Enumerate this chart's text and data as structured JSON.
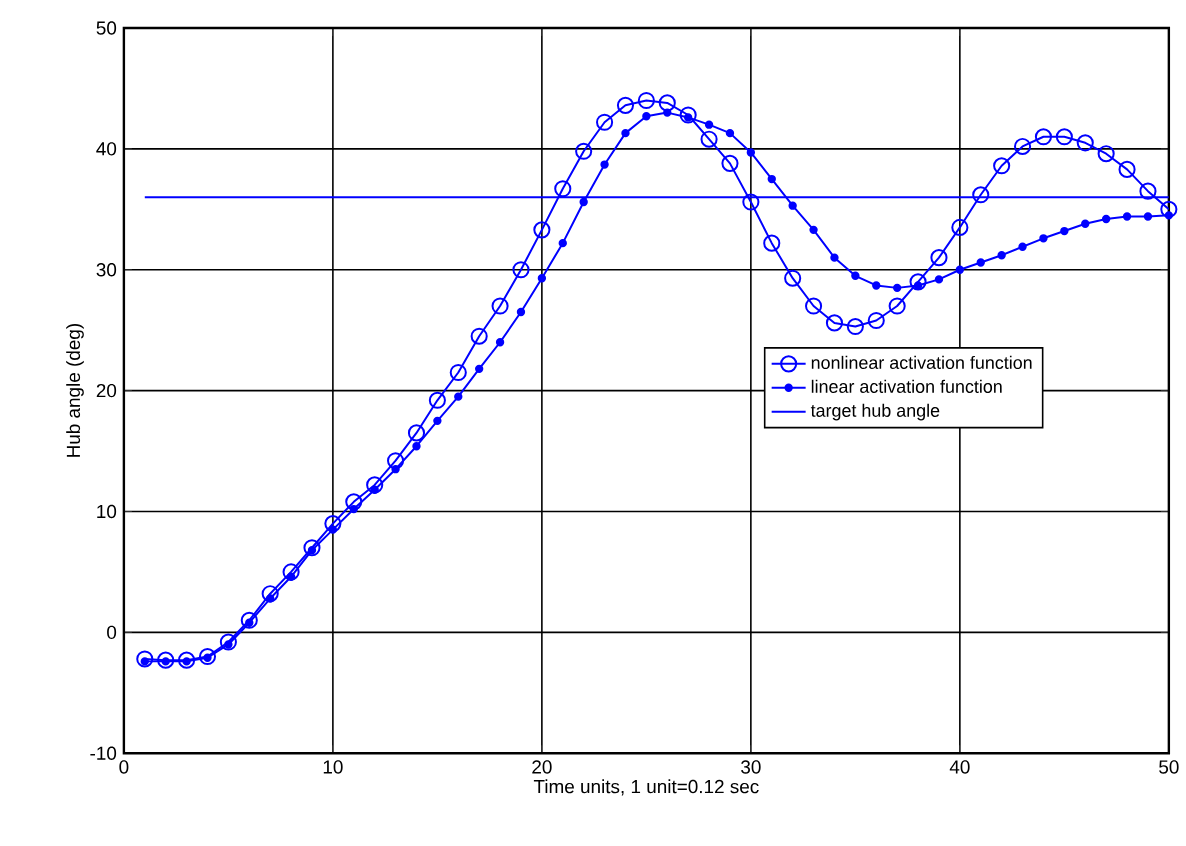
{
  "chart_data": {
    "type": "line",
    "xlabel": "Time units, 1 unit=0.12 sec",
    "ylabel": "Hub angle (deg)",
    "xlim": [
      0,
      50
    ],
    "ylim": [
      -10,
      50
    ],
    "xticks": [
      0,
      10,
      20,
      30,
      40,
      50
    ],
    "yticks": [
      -10,
      0,
      10,
      20,
      30,
      40,
      50
    ],
    "grid": true,
    "legend": "right",
    "x": [
      1,
      2,
      3,
      4,
      5,
      6,
      7,
      8,
      9,
      10,
      11,
      12,
      13,
      14,
      15,
      16,
      17,
      18,
      19,
      20,
      21,
      22,
      23,
      24,
      25,
      26,
      27,
      28,
      29,
      30,
      31,
      32,
      33,
      34,
      35,
      36,
      37,
      38,
      39,
      40,
      41,
      42,
      43,
      44,
      45,
      46,
      47,
      48,
      49,
      50
    ],
    "series": [
      {
        "name": "nonlinear activation function",
        "color": "#0000ff",
        "marker": "circle",
        "values": [
          -2.2,
          -2.3,
          -2.3,
          -2,
          -0.8,
          1,
          3.2,
          5,
          7,
          9,
          10.8,
          12.2,
          14.2,
          16.5,
          19.2,
          21.5,
          24.5,
          27,
          30,
          33.3,
          36.7,
          39.8,
          42.2,
          43.6,
          44,
          43.8,
          42.8,
          40.8,
          38.8,
          35.6,
          32.2,
          29.3,
          27,
          25.6,
          25.3,
          25.8,
          27,
          29,
          31,
          33.5,
          36.2,
          38.6,
          40.2,
          41,
          41,
          40.5,
          39.6,
          38.3,
          36.5,
          35
        ]
      },
      {
        "name": "linear activation function",
        "color": "#0000ff",
        "marker": "dot",
        "values": [
          -2.4,
          -2.4,
          -2.4,
          -2.1,
          -1,
          0.8,
          2.8,
          4.6,
          6.8,
          8.5,
          10.2,
          11.8,
          13.5,
          15.4,
          17.5,
          19.5,
          21.8,
          24,
          26.5,
          29.3,
          32.2,
          35.6,
          38.7,
          41.3,
          42.7,
          43,
          42.6,
          42,
          41.3,
          39.7,
          37.5,
          35.3,
          33.3,
          31,
          29.5,
          28.7,
          28.5,
          28.7,
          29.2,
          30,
          30.6,
          31.2,
          31.9,
          32.6,
          33.2,
          33.8,
          34.2,
          34.4,
          34.4,
          34.5
        ]
      },
      {
        "name": "target hub angle",
        "color": "#0000ff",
        "marker": "none",
        "x": [
          1,
          50
        ],
        "values": [
          36,
          36
        ]
      }
    ]
  }
}
